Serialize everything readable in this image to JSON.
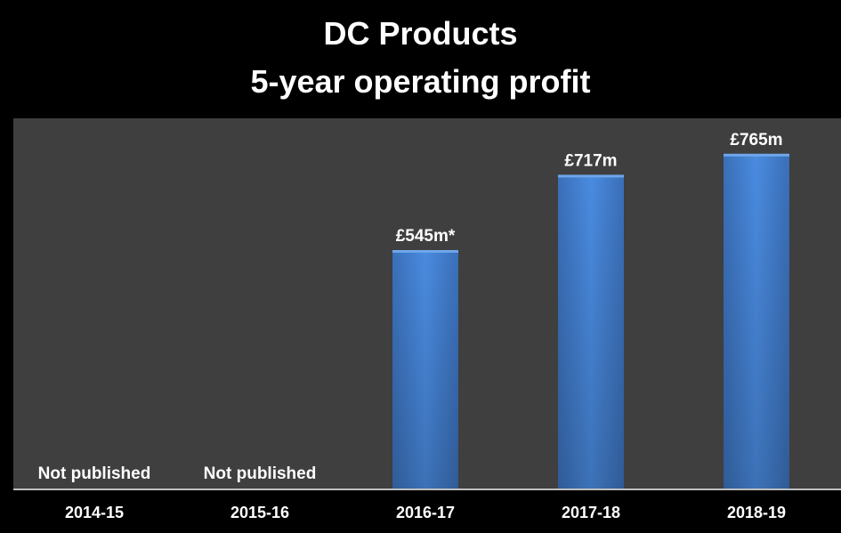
{
  "title": "DC Products",
  "subtitle": "5-year operating profit",
  "colors": {
    "background": "#000000",
    "plot_area": "#3f3f3f",
    "bar": "#4a86d8",
    "text": "#ffffff"
  },
  "chart_data": {
    "type": "bar",
    "title": "DC Products",
    "subtitle": "5-year operating profit",
    "categories": [
      "2014-15",
      "2015-16",
      "2016-17",
      "2017-18",
      "2018-19"
    ],
    "values": [
      null,
      null,
      545,
      717,
      765
    ],
    "data_labels": [
      "Not published",
      "Not published",
      "£545m*",
      "£717m",
      "£765m"
    ],
    "unit": "£m",
    "xlabel": "",
    "ylabel": "",
    "ylim": [
      0,
      846
    ],
    "grid": false,
    "legend": "none"
  }
}
